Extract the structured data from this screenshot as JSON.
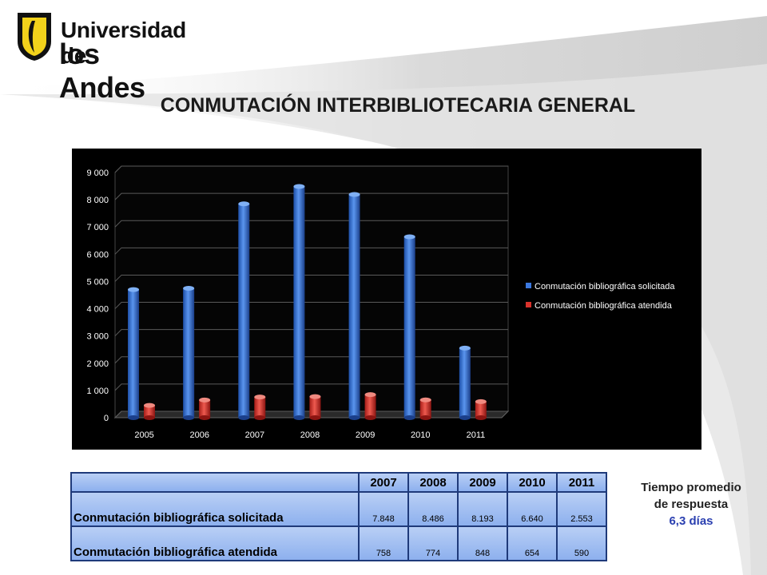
{
  "logo": {
    "line1": "Universidad de",
    "line2": "los Andes"
  },
  "title": "CONMUTACIÓN INTERBIBLIOTECARIA GENERAL",
  "chart_data": {
    "type": "bar",
    "categories": [
      "2005",
      "2006",
      "2007",
      "2008",
      "2009",
      "2010",
      "2011"
    ],
    "series": [
      {
        "name": "Conmutación bibliográfica solicitada",
        "color": "#2f6fd6",
        "values": [
          4700,
          4750,
          7848,
          8486,
          8193,
          6640,
          2553
        ]
      },
      {
        "name": "Conmutación bibliográfica atendida",
        "color": "#d9322b",
        "values": [
          450,
          650,
          758,
          774,
          848,
          654,
          590
        ]
      }
    ],
    "yticks": [
      "0",
      "1 000",
      "2 000",
      "3 000",
      "4 000",
      "5 000",
      "6 000",
      "7 000",
      "8 000",
      "9 000"
    ],
    "ylim": [
      0,
      9000
    ],
    "grid": true,
    "legend": "right",
    "background": "#000000"
  },
  "table": {
    "years": [
      "2007",
      "2008",
      "2009",
      "2010",
      "2011"
    ],
    "rows": [
      {
        "label": "Conmutación bibliográfica solicitada",
        "values": [
          "7.848",
          "8.486",
          "8.193",
          "6.640",
          "2.553"
        ]
      },
      {
        "label": "Conmutación bibliográfica atendida",
        "values": [
          "758",
          "774",
          "848",
          "654",
          "590"
        ]
      }
    ]
  },
  "response": {
    "label_line1": "Tiempo promedio",
    "label_line2": "de respuesta",
    "value": "6,3 días"
  }
}
